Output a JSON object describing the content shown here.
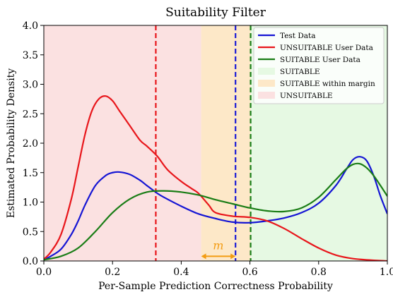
{
  "chart_data": {
    "type": "line",
    "title": "Suitability Filter",
    "xlabel": "Per-Sample Prediction Correctness Probability",
    "ylabel": "Estimated Probability Density",
    "xlim": [
      0.0,
      1.0
    ],
    "ylim": [
      0.0,
      4.0
    ],
    "xticks": [
      "0.0",
      "0.2",
      "0.4",
      "0.6",
      "0.8",
      "1.0"
    ],
    "yticks": [
      "0.0",
      "0.5",
      "1.0",
      "1.5",
      "2.0",
      "2.5",
      "3.0",
      "3.5",
      "4.0"
    ],
    "grid": false,
    "legend_position": "top-right",
    "regions": [
      {
        "name": "SUITABLE",
        "x0": 0.602,
        "x1": 1.0,
        "color": "#e6f9e3"
      },
      {
        "name": "SUITABLE within margin",
        "x0": 0.458,
        "x1": 0.602,
        "color": "#fde8c8"
      },
      {
        "name": "UNSUITABLE",
        "x0": 0.0,
        "x1": 0.458,
        "color": "#fbe1e1"
      }
    ],
    "vlines": [
      {
        "x": 0.326,
        "color": "#e8161b",
        "style": "dashed"
      },
      {
        "x": 0.558,
        "color": "#1a1ad6",
        "style": "dashed"
      },
      {
        "x": 0.602,
        "color": "#1a7d16",
        "style": "dashed"
      }
    ],
    "annotation": {
      "text": "m",
      "x0": 0.458,
      "x1": 0.558,
      "y": 0.08,
      "color": "#f39c12"
    },
    "series": [
      {
        "name": "Test Data",
        "color": "#1515d4",
        "x": [
          0.0,
          0.02,
          0.05,
          0.08,
          0.1,
          0.12,
          0.15,
          0.18,
          0.2,
          0.22,
          0.25,
          0.28,
          0.3,
          0.33,
          0.35,
          0.4,
          0.45,
          0.5,
          0.55,
          0.6,
          0.65,
          0.7,
          0.75,
          0.8,
          0.85,
          0.88,
          0.9,
          0.92,
          0.94,
          0.96,
          0.98,
          1.0
        ],
        "y": [
          0.02,
          0.08,
          0.2,
          0.45,
          0.68,
          0.95,
          1.28,
          1.45,
          1.5,
          1.51,
          1.47,
          1.37,
          1.28,
          1.15,
          1.08,
          0.93,
          0.8,
          0.72,
          0.66,
          0.65,
          0.68,
          0.73,
          0.82,
          0.98,
          1.28,
          1.55,
          1.72,
          1.77,
          1.7,
          1.45,
          1.1,
          0.8
        ]
      },
      {
        "name": "UNSUITABLE User Data",
        "color": "#e8161b",
        "x": [
          0.0,
          0.02,
          0.05,
          0.08,
          0.1,
          0.12,
          0.14,
          0.16,
          0.18,
          0.2,
          0.22,
          0.25,
          0.28,
          0.3,
          0.33,
          0.36,
          0.4,
          0.43,
          0.45,
          0.48,
          0.5,
          0.55,
          0.6,
          0.65,
          0.7,
          0.75,
          0.8,
          0.85,
          0.9,
          0.95,
          1.0
        ],
        "y": [
          0.03,
          0.15,
          0.45,
          1.05,
          1.6,
          2.15,
          2.55,
          2.75,
          2.8,
          2.72,
          2.55,
          2.3,
          2.05,
          1.95,
          1.78,
          1.55,
          1.35,
          1.23,
          1.15,
          0.95,
          0.82,
          0.76,
          0.74,
          0.68,
          0.55,
          0.38,
          0.22,
          0.1,
          0.04,
          0.015,
          0.0
        ]
      },
      {
        "name": "SUITABLE User Data",
        "color": "#1a7d16",
        "x": [
          0.0,
          0.05,
          0.1,
          0.15,
          0.2,
          0.25,
          0.3,
          0.35,
          0.4,
          0.45,
          0.5,
          0.55,
          0.6,
          0.65,
          0.7,
          0.75,
          0.8,
          0.85,
          0.88,
          0.9,
          0.92,
          0.94,
          0.96,
          0.98,
          1.0
        ],
        "y": [
          0.02,
          0.08,
          0.22,
          0.5,
          0.82,
          1.05,
          1.17,
          1.19,
          1.17,
          1.12,
          1.04,
          0.97,
          0.9,
          0.85,
          0.84,
          0.9,
          1.08,
          1.38,
          1.56,
          1.64,
          1.65,
          1.58,
          1.45,
          1.28,
          1.1
        ]
      }
    ]
  }
}
